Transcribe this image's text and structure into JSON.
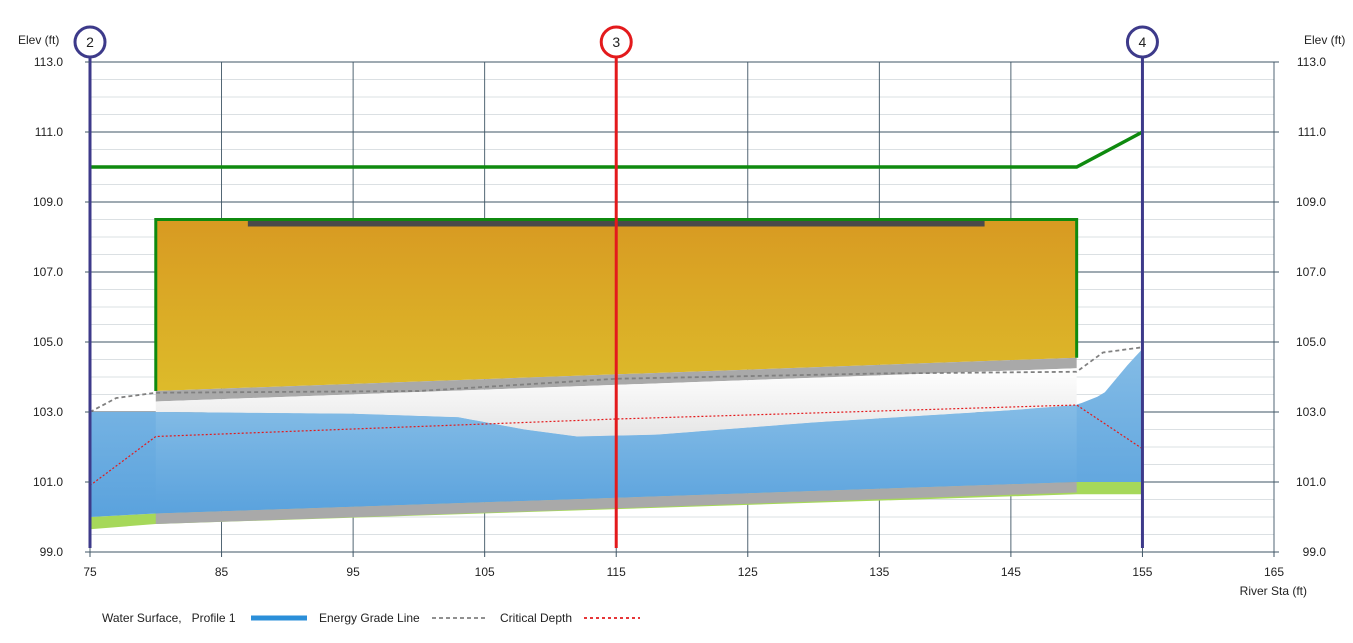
{
  "chart_data": {
    "type": "area",
    "ylabel_left": "Elev (ft)",
    "ylabel_right": "Elev (ft)",
    "xlabel": "River Sta (ft)",
    "xlim": [
      75,
      165
    ],
    "ylim": [
      99,
      113
    ],
    "x_ticks": [
      "75",
      "85",
      "95",
      "105",
      "115",
      "125",
      "135",
      "145",
      "155",
      "165"
    ],
    "y_ticks": [
      "99.0",
      "101.0",
      "103.0",
      "105.0",
      "107.0",
      "109.0",
      "111.0",
      "113.0"
    ],
    "grid": true,
    "cross_sections": [
      {
        "id": "2",
        "station": 75,
        "color": "#3d3a8a"
      },
      {
        "id": "3",
        "station": 115,
        "color": "#e31a1c"
      },
      {
        "id": "4",
        "station": 155,
        "color": "#3d3a8a"
      }
    ],
    "series": [
      {
        "name": "Water Surface,   Profile 1",
        "color": "#2b8fd9",
        "x": [
          75,
          80,
          95,
          103,
          108,
          112,
          118,
          130,
          145,
          150,
          152,
          154,
          155
        ],
        "y": [
          103.0,
          103.0,
          102.95,
          102.85,
          102.5,
          102.3,
          102.35,
          102.7,
          103.05,
          103.2,
          103.5,
          104.4,
          104.8
        ]
      },
      {
        "name": "Energy Grade Line",
        "color": "#808080",
        "x": [
          75,
          77,
          80,
          100,
          115,
          135,
          150,
          152,
          155
        ],
        "y": [
          103.0,
          103.4,
          103.55,
          103.6,
          103.95,
          104.1,
          104.15,
          104.7,
          104.85
        ]
      },
      {
        "name": "Critical Depth",
        "color": "#e31a1c",
        "x": [
          75,
          80,
          115,
          150,
          155
        ],
        "y": [
          100.9,
          102.3,
          102.8,
          103.2,
          101.95
        ]
      }
    ],
    "road_profile": {
      "x": [
        75,
        150,
        155
      ],
      "y": [
        110.0,
        110.0,
        111.0
      ]
    },
    "culvert": {
      "x_start": 80,
      "x_end": 150,
      "top": 108.5,
      "inlet_invert": 103.6,
      "outlet_invert": 104.55
    },
    "deck": {
      "x_start": 87,
      "x_end": 143,
      "top": 108.5,
      "bottom": 108.3
    },
    "channel_bed": {
      "x": [
        75,
        80,
        150,
        155
      ],
      "y_top": [
        100.0,
        100.1,
        101.0,
        101.0
      ],
      "y_bottom": [
        99.65,
        99.8,
        100.65,
        100.65
      ]
    },
    "legend_placement": "bottom-left"
  }
}
